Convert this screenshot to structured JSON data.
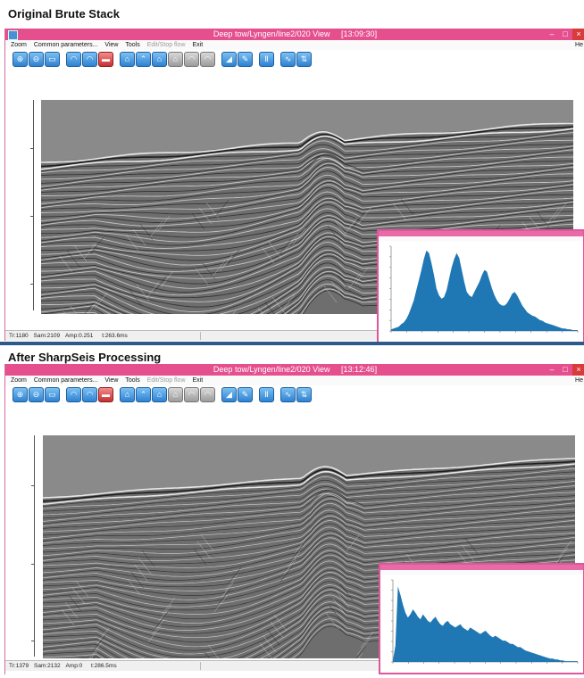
{
  "windows": [
    {
      "caption": "Original Brute Stack",
      "title": "Deep tow/Lyngen/line2/020 View",
      "time": "[13:09:30]",
      "status": {
        "trace": "Tr:1180",
        "sample": "Sam:2109",
        "amp": "Amp:0.251",
        "time": "t:263.6ms"
      },
      "hist_values": [
        2,
        3,
        4,
        5,
        8,
        10,
        14,
        20,
        28,
        36,
        48,
        60,
        72,
        85,
        95,
        92,
        80,
        66,
        50,
        42,
        38,
        40,
        48,
        62,
        75,
        85,
        92,
        86,
        72,
        58,
        46,
        42,
        40,
        46,
        52,
        58,
        66,
        72,
        70,
        60,
        50,
        42,
        36,
        32,
        30,
        30,
        33,
        38,
        44,
        46,
        42,
        36,
        30,
        26,
        22,
        20,
        18,
        17,
        15,
        13,
        12,
        10,
        9,
        8,
        7,
        6,
        5,
        4,
        3,
        3,
        2,
        2,
        1,
        1,
        1
      ]
    },
    {
      "caption": "After SharpSeis Processing",
      "title": "Deep tow/Lyngen/line2/020 View",
      "time": "[13:12:46]",
      "status": {
        "trace": "Tr:1379",
        "sample": "Sam:2132",
        "amp": "Amp:0",
        "time": "t:286.5ms"
      },
      "hist_values": [
        2,
        20,
        92,
        82,
        70,
        60,
        54,
        58,
        64,
        60,
        55,
        52,
        58,
        54,
        50,
        48,
        52,
        55,
        50,
        46,
        44,
        48,
        50,
        46,
        44,
        42,
        44,
        46,
        42,
        40,
        38,
        42,
        40,
        38,
        36,
        34,
        36,
        38,
        35,
        32,
        30,
        32,
        30,
        28,
        26,
        26,
        24,
        22,
        22,
        20,
        18,
        18,
        16,
        14,
        13,
        12,
        11,
        10,
        9,
        8,
        7,
        6,
        5,
        4,
        4,
        3,
        3,
        2,
        2,
        1,
        1,
        1,
        1,
        1,
        1
      ]
    }
  ],
  "menu": {
    "zoom": "Zoom",
    "common": "Common parameters...",
    "view": "View",
    "tools": "Tools",
    "editstop": "Edit/Stop flow",
    "exit": "Exit",
    "help": "He"
  },
  "icons": [
    "zoom-in-icon",
    "zoom-out-icon",
    "fit-view-icon",
    "wiggle-icon",
    "fill-icon",
    "palette-icon",
    "horizon-icon",
    "peak-icon",
    "trough-icon",
    "pick-icon",
    "undo-pick-icon",
    "redo-pick-icon",
    "gain-icon",
    "edit-icon",
    "pause-icon",
    "spectrum-icon",
    "amplitude-icon"
  ],
  "colors": {
    "titlebar": "#e54f8e",
    "histogram_fill": "#1f77b4",
    "seismic_bg": "#5a5a5a"
  }
}
